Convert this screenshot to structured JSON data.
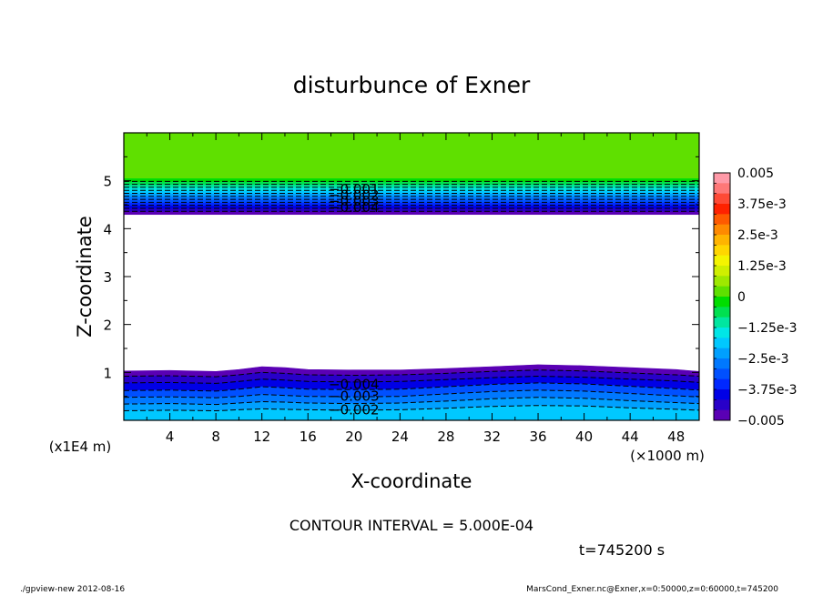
{
  "colors": {
    "background": "#ffffff",
    "frame": "#000000",
    "contour_line": "#000000"
  },
  "footer": {
    "left": "./gpview-new   2012-08-16",
    "right": "MarsCond_Exner.nc@Exner,x=0:50000,z=0:60000,t=745200"
  },
  "chart_data": {
    "type": "contour",
    "title": "disturbunce of Exner",
    "xlabel": "X-coordinate",
    "ylabel": "Z-coordinate",
    "x_unit_label": "(×1000 m)",
    "y_unit_label": "(x1E4 m)",
    "xlim": [
      0,
      50
    ],
    "ylim": [
      0,
      6
    ],
    "x_ticks": [
      4,
      8,
      12,
      16,
      20,
      24,
      28,
      32,
      36,
      40,
      44,
      48
    ],
    "y_ticks": [
      1,
      2,
      3,
      4,
      5
    ],
    "y_tick_labels": [
      "1",
      "2",
      "3",
      "4",
      "5"
    ],
    "contour_interval_text": "CONTOUR INTERVAL = 5.000E-04",
    "time_text": "t=745200 s",
    "colorbar": {
      "range": [
        -0.005,
        0.005
      ],
      "labels": [
        "0.005",
        "3.75e-3",
        "2.5e-3",
        "1.25e-3",
        "0",
        "−1.25e-3",
        "−2.5e-3",
        "−3.75e-3",
        "−0.005"
      ],
      "label_values": [
        0.005,
        0.00375,
        0.0025,
        0.00125,
        0,
        -0.00125,
        -0.0025,
        -0.00375,
        -0.005
      ],
      "colors": [
        "#ff9aa8",
        "#ff7878",
        "#ff4a36",
        "#ff2200",
        "#ff5a00",
        "#ff8a00",
        "#ffb400",
        "#ffd600",
        "#f4f400",
        "#cfef00",
        "#9ee800",
        "#5fe000",
        "#00dd00",
        "#00e050",
        "#00e6a0",
        "#00e6e6",
        "#00c8ff",
        "#00a0ff",
        "#0078ff",
        "#0050ff",
        "#0028ff",
        "#0000e6",
        "#2800c8",
        "#5a00b4"
      ]
    },
    "contour_labels": [
      {
        "text": "−0.001",
        "x": 20,
        "z": 4.82
      },
      {
        "text": "−0.002",
        "x": 20,
        "z": 4.7
      },
      {
        "text": "−0.003",
        "x": 20,
        "z": 4.58
      },
      {
        "text": "−0.004",
        "x": 20,
        "z": 4.44
      },
      {
        "text": "−0.004",
        "x": 20,
        "z": 0.75
      },
      {
        "text": "−0.003",
        "x": 20,
        "z": 0.5
      },
      {
        "text": "−0.002",
        "x": 20,
        "z": 0.22
      }
    ],
    "upper_band": {
      "note": "field above z=4.3 rises from -0.005 to 0",
      "z_bottom": 4.3,
      "z_top_zero": 5.05,
      "value_top": 0
    },
    "lower_boundary": {
      "x": [
        0,
        4,
        8,
        10,
        12,
        14,
        16,
        20,
        24,
        28,
        32,
        36,
        40,
        44,
        48,
        50
      ],
      "z": [
        1.03,
        1.04,
        1.02,
        1.06,
        1.12,
        1.1,
        1.06,
        1.05,
        1.05,
        1.08,
        1.12,
        1.16,
        1.14,
        1.1,
        1.06,
        1.02
      ]
    },
    "lower_contours_z": [
      {
        "value": -0.0045,
        "z": [
          0.92,
          0.93,
          0.91,
          0.95,
          1.0,
          0.98,
          0.95,
          0.94,
          0.95,
          0.98,
          1.02,
          1.05,
          1.03,
          0.99,
          0.95,
          0.92
        ]
      },
      {
        "value": -0.004,
        "z": [
          0.78,
          0.79,
          0.77,
          0.81,
          0.86,
          0.84,
          0.81,
          0.8,
          0.81,
          0.85,
          0.89,
          0.92,
          0.9,
          0.86,
          0.82,
          0.79
        ]
      },
      {
        "value": -0.0035,
        "z": [
          0.62,
          0.63,
          0.61,
          0.65,
          0.7,
          0.68,
          0.65,
          0.64,
          0.65,
          0.7,
          0.75,
          0.78,
          0.76,
          0.71,
          0.66,
          0.63
        ]
      },
      {
        "value": -0.003,
        "z": [
          0.48,
          0.49,
          0.47,
          0.5,
          0.54,
          0.52,
          0.5,
          0.49,
          0.5,
          0.55,
          0.6,
          0.63,
          0.61,
          0.56,
          0.51,
          0.49
        ]
      },
      {
        "value": -0.0025,
        "z": [
          0.34,
          0.35,
          0.33,
          0.36,
          0.39,
          0.38,
          0.36,
          0.35,
          0.36,
          0.4,
          0.45,
          0.48,
          0.46,
          0.41,
          0.37,
          0.35
        ]
      },
      {
        "value": -0.002,
        "z": [
          0.2,
          0.21,
          0.2,
          0.22,
          0.24,
          0.23,
          0.22,
          0.21,
          0.22,
          0.25,
          0.29,
          0.31,
          0.3,
          0.26,
          0.23,
          0.21
        ]
      }
    ]
  }
}
